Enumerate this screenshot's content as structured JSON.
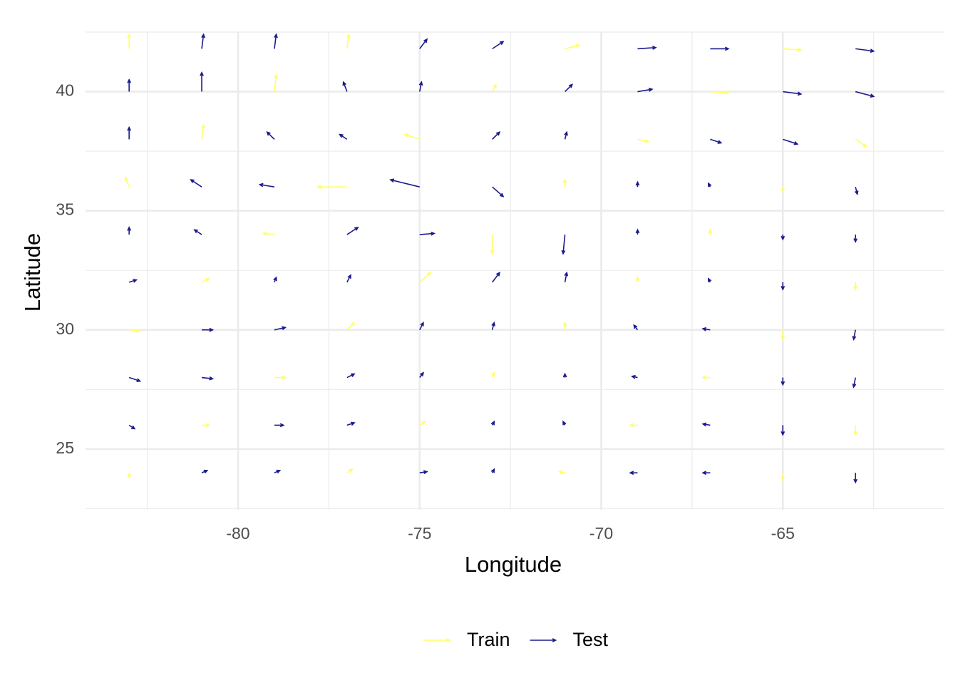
{
  "chart_data": {
    "type": "quiver",
    "x_label": "Longitude",
    "y_label": "Latitude",
    "xlim": [
      -84.2,
      -60.55
    ],
    "ylim": [
      22.45,
      42.5
    ],
    "xticks": [
      -80,
      -75,
      -70,
      -65
    ],
    "yticks": [
      25,
      30,
      35,
      40
    ],
    "grid": true,
    "minor_grid": true,
    "legend": "bottom",
    "series": [
      {
        "name": "Train",
        "color": "#ffff66",
        "x": [
          -83,
          -77,
          -71,
          -65,
          -79,
          -73,
          -67,
          -81,
          -75,
          -69,
          -63,
          -83,
          -77,
          -71,
          -65,
          -79,
          -73,
          -67,
          -81,
          -75,
          -69,
          -63,
          -83,
          -77,
          -71,
          -65,
          -79,
          -73,
          -67,
          -81,
          -75,
          -69,
          -63,
          -83,
          -77,
          -71,
          -65
        ],
        "y": [
          41.8,
          41.8,
          41.8,
          41.8,
          40,
          40,
          40,
          38,
          38,
          38,
          38,
          36,
          36,
          36,
          36,
          34,
          34,
          34,
          32,
          32,
          32,
          32,
          30,
          30,
          30,
          30,
          28,
          28,
          28,
          26,
          26,
          26,
          26,
          24,
          24,
          24,
          24
        ],
        "u": [
          0,
          0.05,
          0.4,
          0.5,
          0.05,
          0.1,
          0.5,
          0.05,
          -0.4,
          0.3,
          0.3,
          -0.1,
          -0.8,
          0,
          0,
          -0.3,
          0,
          0,
          0.2,
          0.3,
          0,
          0,
          0.3,
          0.2,
          0,
          0,
          0.3,
          0.05,
          -0.2,
          0.2,
          0.15,
          -0.2,
          0,
          0,
          0.15,
          -0.15,
          0
        ],
        "v": [
          0.6,
          0.6,
          0.15,
          -0.05,
          0.7,
          0.3,
          -0.05,
          0.6,
          0.2,
          -0.1,
          -0.3,
          0.4,
          0,
          0.3,
          -0.2,
          0.05,
          -0.8,
          0.2,
          0.15,
          0.4,
          0.2,
          -0.3,
          -0.05,
          0.3,
          0.3,
          -0.4,
          0,
          0.2,
          0,
          0,
          0.15,
          0,
          -0.4,
          -0.2,
          0.15,
          0.05,
          -0.3
        ]
      },
      {
        "name": "Test",
        "color": "#1a1a8c",
        "x": [
          -81,
          -79,
          -75,
          -73,
          -69,
          -67,
          -63,
          -83,
          -81,
          -77,
          -75,
          -71,
          -69,
          -65,
          -63,
          -83,
          -79,
          -77,
          -73,
          -71,
          -67,
          -65,
          -81,
          -79,
          -75,
          -73,
          -69,
          -67,
          -63,
          -83,
          -81,
          -77,
          -75,
          -71,
          -69,
          -65,
          -63,
          -83,
          -79,
          -77,
          -73,
          -71,
          -67,
          -65,
          -81,
          -79,
          -75,
          -73,
          -69,
          -67,
          -63,
          -83,
          -81,
          -77,
          -75,
          -71,
          -69,
          -65,
          -63,
          -83,
          -79,
          -77,
          -73,
          -71,
          -67,
          -65,
          -81,
          -79,
          -75,
          -73,
          -69,
          -67,
          -63
        ],
        "y": [
          41.8,
          41.8,
          41.8,
          41.8,
          41.8,
          41.8,
          41.8,
          40,
          40,
          40,
          40,
          40,
          40,
          40,
          40,
          38,
          38,
          38,
          38,
          38,
          38,
          38,
          36,
          36,
          36,
          36,
          36,
          36,
          36,
          34,
          34,
          34,
          34,
          34,
          34,
          34,
          34,
          32,
          32,
          32,
          32,
          32,
          32,
          32,
          30,
          30,
          30,
          30,
          30,
          30,
          30,
          28,
          28,
          28,
          28,
          28,
          28,
          28,
          28,
          26,
          26,
          26,
          26,
          26,
          26,
          26,
          24,
          24,
          24,
          24,
          24,
          24,
          24
        ],
        "u": [
          0.05,
          0.05,
          0.2,
          0.3,
          0.5,
          0.5,
          0.5,
          0,
          0,
          -0.1,
          0.05,
          0.2,
          0.4,
          0.5,
          0.5,
          0,
          -0.2,
          -0.2,
          0.2,
          0.05,
          0.3,
          0.4,
          -0.3,
          -0.4,
          -0.8,
          0.3,
          0,
          -0.05,
          0.05,
          0,
          -0.2,
          0.3,
          0.4,
          -0.05,
          0,
          0,
          0,
          0.2,
          0.05,
          0.1,
          0.2,
          0.05,
          -0.05,
          0,
          0.3,
          0.3,
          0.1,
          0.05,
          -0.1,
          -0.2,
          -0.05,
          0.3,
          0.3,
          0.2,
          0.1,
          0,
          -0.15,
          0,
          -0.05,
          0.15,
          0.25,
          0.2,
          0.05,
          -0.05,
          -0.2,
          0,
          0.15,
          0.15,
          0.2,
          0.05,
          -0.2,
          -0.2,
          0
        ],
        "v": [
          0.6,
          0.6,
          0.4,
          0.3,
          0.05,
          0,
          -0.1,
          0.5,
          0.8,
          0.4,
          0.4,
          0.3,
          0.1,
          -0.1,
          -0.2,
          0.5,
          0.3,
          0.2,
          0.3,
          0.3,
          -0.15,
          -0.2,
          0.3,
          0.1,
          0.3,
          -0.4,
          0.2,
          0.15,
          -0.3,
          0.3,
          0.2,
          0.3,
          0.05,
          -0.8,
          0.2,
          -0.2,
          -0.3,
          0.1,
          0.2,
          0.3,
          0.4,
          0.4,
          0.15,
          -0.3,
          0,
          0.1,
          0.3,
          0.3,
          0.2,
          0.05,
          -0.4,
          -0.15,
          -0.05,
          0.15,
          0.2,
          0.15,
          0.05,
          -0.3,
          -0.4,
          -0.15,
          0,
          0.1,
          0.15,
          0.15,
          0.05,
          -0.4,
          0.1,
          0.1,
          0.05,
          0.15,
          0,
          0,
          -0.4
        ]
      }
    ]
  }
}
